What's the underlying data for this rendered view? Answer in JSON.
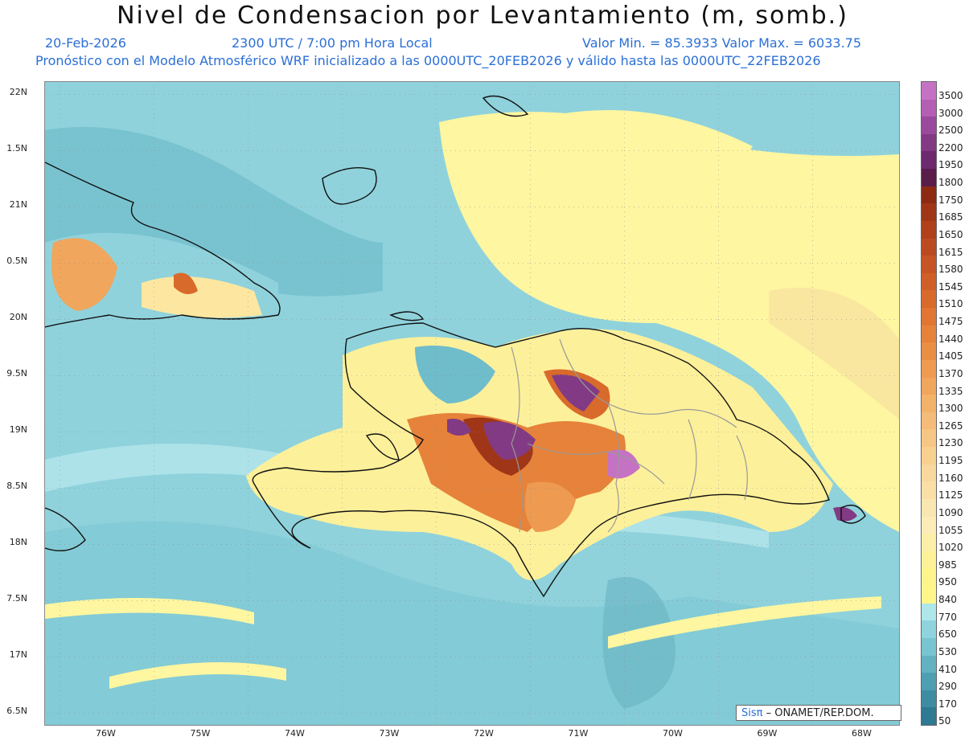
{
  "title": "Nivel de Condensacion por Levantamiento (m, somb.)",
  "date": "20-Feb-2026",
  "time": "2300 UTC / 7:00 pm Hora Local",
  "minmax": "Valor Min. = 85.3933   Valor Max. = 6033.75",
  "model_line": "Pronóstico con el Modelo Atmosférico WRF inicializado a las 0000UTC_20FEB2026 y válido hasta las  0000UTC_22FEB2026",
  "credit": {
    "sis": "Sisπ",
    "org": "– ONAMET/REP.DOM."
  },
  "y_labels": [
    "22N",
    "1.5N",
    "21N",
    "0.5N",
    "20N",
    "9.5N",
    "19N",
    "8.5N",
    "18N",
    "7.5N",
    "17N",
    "6.5N"
  ],
  "x_labels": [
    "76W",
    "75W",
    "74W",
    "73W",
    "72W",
    "71W",
    "70W",
    "69W",
    "68W"
  ],
  "colorbar": {
    "labels": [
      "3500",
      "3000",
      "2500",
      "2200",
      "1950",
      "1800",
      "1750",
      "1685",
      "1650",
      "1615",
      "1580",
      "1545",
      "1510",
      "1475",
      "1440",
      "1405",
      "1370",
      "1335",
      "1300",
      "1265",
      "1230",
      "1195",
      "1160",
      "1125",
      "1090",
      "1055",
      "1020",
      "985",
      "950",
      "840",
      "770",
      "650",
      "530",
      "410",
      "290",
      "170",
      "50"
    ],
    "colors": [
      "#c672c4",
      "#b45fb4",
      "#9a4a9c",
      "#813a83",
      "#6e2a6e",
      "#5a1d4a",
      "#8c2a14",
      "#a03618",
      "#b0401c",
      "#bc4a20",
      "#c65424",
      "#d05e28",
      "#d86a2c",
      "#e07632",
      "#e6823a",
      "#ea8e44",
      "#ee9a50",
      "#f0a65c",
      "#f2b26a",
      "#f4bc78",
      "#f6c684",
      "#f8d090",
      "#f8d89c",
      "#faE0a6",
      "#fae6b0",
      "#fbecb8",
      "#fcf0a8",
      "#fdf29a",
      "#fef48e",
      "#fef68a",
      "#aee6ea",
      "#8fd4dc",
      "#78c4d0",
      "#63b2c2",
      "#4f9fb2",
      "#3d8ca2",
      "#2d7a92"
    ]
  }
}
